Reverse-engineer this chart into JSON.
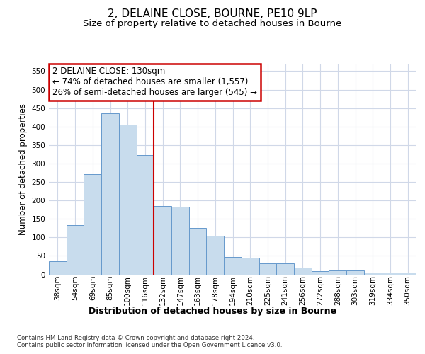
{
  "title_line1": "2, DELAINE CLOSE, BOURNE, PE10 9LP",
  "title_line2": "Size of property relative to detached houses in Bourne",
  "xlabel": "Distribution of detached houses by size in Bourne",
  "ylabel": "Number of detached properties",
  "categories": [
    "38sqm",
    "54sqm",
    "69sqm",
    "85sqm",
    "100sqm",
    "116sqm",
    "132sqm",
    "147sqm",
    "163sqm",
    "178sqm",
    "194sqm",
    "210sqm",
    "225sqm",
    "241sqm",
    "256sqm",
    "272sqm",
    "288sqm",
    "303sqm",
    "319sqm",
    "334sqm",
    "350sqm"
  ],
  "values": [
    35,
    133,
    272,
    435,
    405,
    323,
    184,
    183,
    126,
    104,
    46,
    45,
    30,
    30,
    18,
    8,
    10,
    10,
    5,
    5,
    5
  ],
  "bar_color": "#c8dced",
  "bar_edge_color": "#6699cc",
  "annotation_text_line1": "2 DELAINE CLOSE: 130sqm",
  "annotation_text_line2": "← 74% of detached houses are smaller (1,557)",
  "annotation_text_line3": "26% of semi-detached houses are larger (545) →",
  "annotation_box_facecolor": "#ffffff",
  "annotation_box_edgecolor": "#cc0000",
  "vline_color": "#cc0000",
  "vline_x": 6,
  "ylim": [
    0,
    570
  ],
  "yticks": [
    0,
    50,
    100,
    150,
    200,
    250,
    300,
    350,
    400,
    450,
    500,
    550
  ],
  "footnote": "Contains HM Land Registry data © Crown copyright and database right 2024.\nContains public sector information licensed under the Open Government Licence v3.0.",
  "bg_color": "#ffffff",
  "plot_bg_color": "#ffffff",
  "grid_color": "#d0d8e8",
  "title_fontsize": 11,
  "subtitle_fontsize": 9.5,
  "tick_fontsize": 7.5,
  "ylabel_fontsize": 8.5,
  "xlabel_fontsize": 9,
  "annot_fontsize": 8.5
}
